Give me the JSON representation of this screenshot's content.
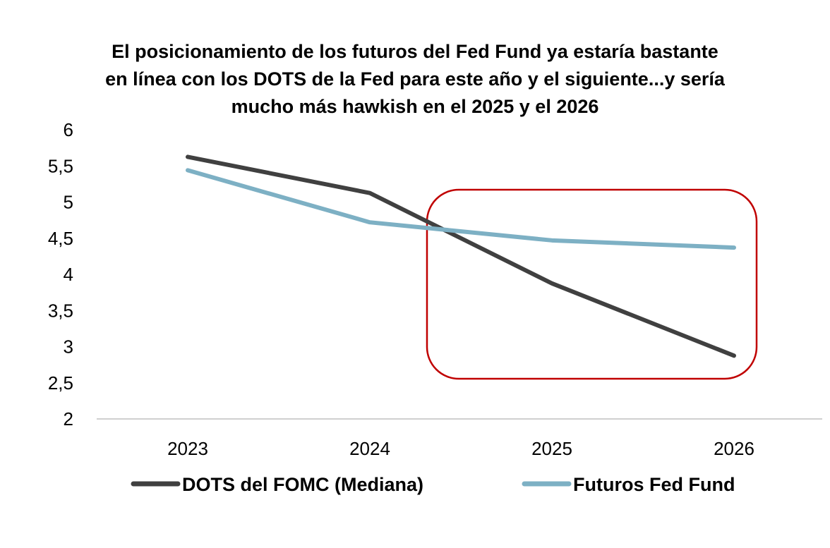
{
  "chart_data": {
    "type": "line",
    "title_lines": [
      "El posicionamiento de los futuros del Fed Fund ya estaría bastante",
      "en línea con los DOTS de la Fed para este año y el siguiente...y sería",
      "mucho más hawkish en el 2025 y el 2026"
    ],
    "categories": [
      "2023",
      "2024",
      "2025",
      "2026"
    ],
    "series": [
      {
        "name": "DOTS del FOMC (Mediana)",
        "color": "#404040",
        "values": [
          5.625,
          5.125,
          3.875,
          2.875
        ]
      },
      {
        "name": "Futuros Fed Fund",
        "color": "#7DB0C4",
        "values": [
          5.44,
          4.72,
          4.47,
          4.37
        ]
      }
    ],
    "ylim": [
      2,
      6
    ],
    "yticks": [
      "2",
      "2,5",
      "3",
      "3,5",
      "4",
      "4,5",
      "5",
      "5,5",
      "6"
    ],
    "ytick_values": [
      2,
      2.5,
      3,
      3.5,
      4,
      4.5,
      5,
      5.5,
      6
    ],
    "grid": false,
    "legend_position": "bottom",
    "annotation": {
      "type": "highlight-box",
      "color": "#C00000",
      "covers": "2025–2026"
    }
  }
}
